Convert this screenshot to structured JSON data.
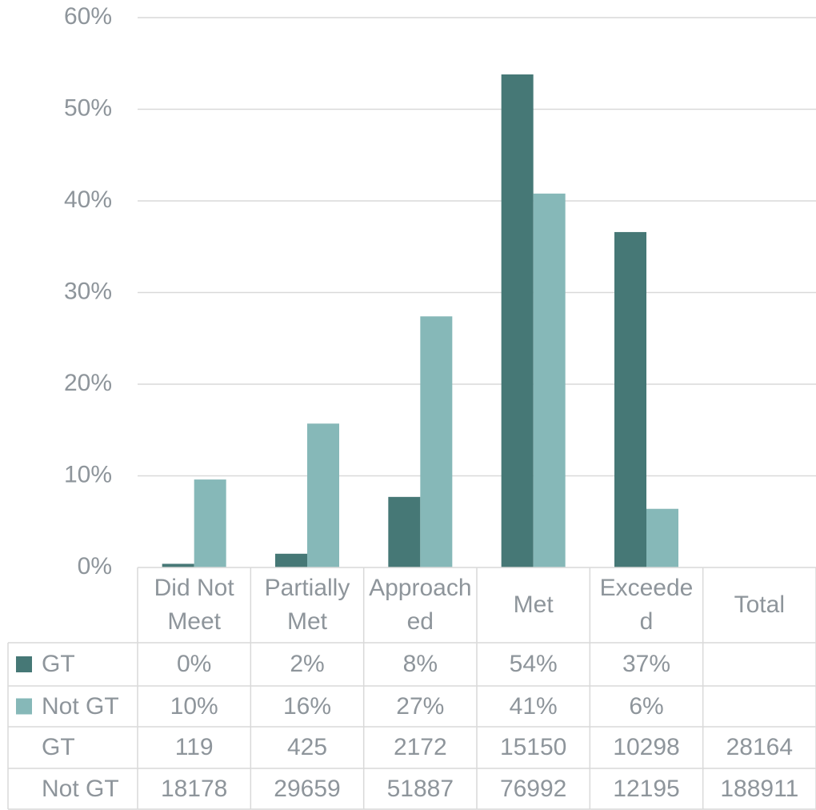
{
  "chart_data": {
    "type": "bar",
    "categories": [
      "Did Not Meet",
      "Partially Met",
      "Approached",
      "Met",
      "Exceeded",
      "Total"
    ],
    "series": [
      {
        "name": "GT",
        "color": "#467876",
        "values": [
          0.4,
          1.5,
          7.7,
          53.8,
          36.6,
          null
        ],
        "value_labels": [
          "0%",
          "2%",
          "8%",
          "54%",
          "37%",
          null
        ]
      },
      {
        "name": "Not GT",
        "color": "#86b8b8",
        "values": [
          9.6,
          15.7,
          27.4,
          40.8,
          6.4,
          null
        ],
        "value_labels": [
          "10%",
          "16%",
          "27%",
          "41%",
          "6%",
          null
        ]
      }
    ],
    "data_table": [
      {
        "name": "GT",
        "values": [
          119,
          425,
          2172,
          15150,
          10298,
          28164
        ]
      },
      {
        "name": "Not GT",
        "values": [
          18178,
          29659,
          51887,
          76992,
          12195,
          188911
        ]
      }
    ],
    "ylim": [
      0,
      60
    ],
    "yticks": [
      {
        "value": 0,
        "label": "0%"
      },
      {
        "value": 10,
        "label": "10%"
      },
      {
        "value": 20,
        "label": "20%"
      },
      {
        "value": 30,
        "label": "30%"
      },
      {
        "value": 40,
        "label": "40%"
      },
      {
        "value": 50,
        "label": "50%"
      },
      {
        "value": 60,
        "label": "60%"
      }
    ],
    "grid": true
  }
}
